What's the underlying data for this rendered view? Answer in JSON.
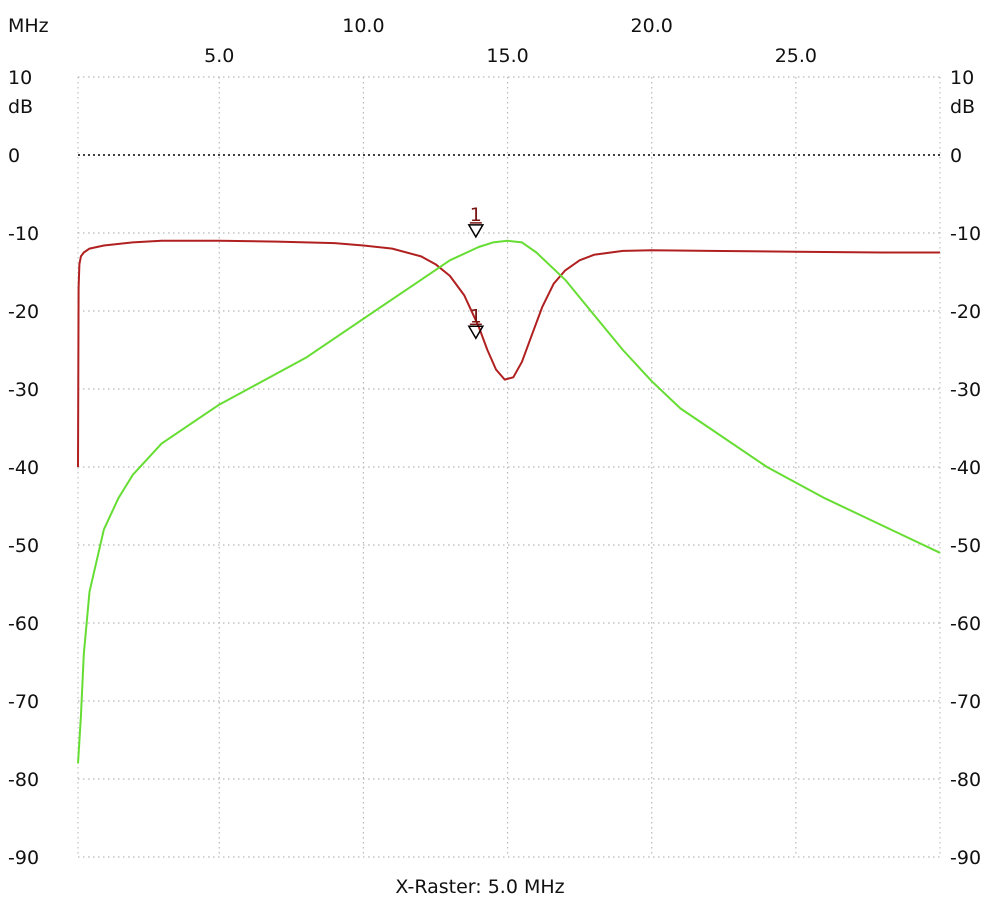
{
  "chart_data": {
    "type": "line",
    "x_unit": "MHz",
    "y_unit": "dB",
    "xlim": [
      0.1,
      30.0
    ],
    "ylim": [
      -90,
      10
    ],
    "x_ticks_lower": [
      "5.0",
      "15.0",
      "25.0"
    ],
    "x_ticks_upper": [
      "10.0",
      "20.0"
    ],
    "x_tick_values_lower": [
      5,
      15,
      25
    ],
    "x_tick_values_upper": [
      10,
      20
    ],
    "y_ticks": [
      "10",
      "0",
      "-10",
      "-20",
      "-30",
      "-40",
      "-50",
      "-60",
      "-70",
      "-80",
      "-90"
    ],
    "y_tick_values": [
      10,
      0,
      -10,
      -20,
      -30,
      -40,
      -50,
      -60,
      -70,
      -80,
      -90
    ],
    "y_unit_label_left": "dB",
    "y_unit_label_right": "dB",
    "x_unit_label": "MHz",
    "xraster_label": "X-Raster: 5.0 MHz",
    "grid": true,
    "series": [
      {
        "color": "#b02020",
        "x": [
          0.1,
          0.12,
          0.15,
          0.2,
          0.3,
          0.5,
          1,
          2,
          3,
          5,
          7,
          9,
          10,
          11,
          12,
          12.5,
          13,
          13.5,
          14,
          14.3,
          14.6,
          14.9,
          15.2,
          15.5,
          15.8,
          16.2,
          16.6,
          17,
          17.5,
          18,
          19,
          20,
          22,
          25,
          28,
          30
        ],
        "y": [
          -40,
          -17,
          -14,
          -13,
          -12.5,
          -12,
          -11.6,
          -11.2,
          -11,
          -11,
          -11.1,
          -11.3,
          -11.6,
          -12,
          -13,
          -14,
          -15.5,
          -18,
          -22,
          -25,
          -27.5,
          -28.8,
          -28.5,
          -26.5,
          -23.5,
          -19.5,
          -16.5,
          -14.8,
          -13.5,
          -12.8,
          -12.3,
          -12.2,
          -12.3,
          -12.4,
          -12.5,
          -12.5
        ],
        "markers": [
          {
            "label": "1",
            "x": 13.9,
            "y": -23.5
          }
        ]
      },
      {
        "color": "#66dd33",
        "x": [
          0.1,
          0.2,
          0.3,
          0.5,
          1,
          1.5,
          2,
          3,
          4,
          5,
          6,
          8,
          10,
          11,
          12,
          13,
          14,
          14.5,
          15,
          15.5,
          16,
          17,
          18,
          19,
          20,
          21,
          22,
          24,
          26,
          28,
          30
        ],
        "y": [
          -78,
          -72,
          -64,
          -56,
          -48,
          -44,
          -41,
          -37,
          -34.5,
          -32,
          -30,
          -26,
          -21,
          -18.5,
          -16,
          -13.5,
          -11.8,
          -11.2,
          -11,
          -11.2,
          -12.5,
          -16,
          -20.5,
          -25,
          -29,
          -32.5,
          -35,
          -40,
          -44,
          -47.5,
          -51
        ],
        "markers": [
          {
            "label": "1",
            "x": 13.9,
            "y": -10.5
          }
        ]
      }
    ]
  }
}
